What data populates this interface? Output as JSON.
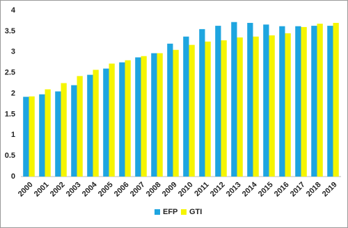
{
  "chart_data": {
    "type": "bar",
    "categories": [
      "2000",
      "2001",
      "2002",
      "2003",
      "2004",
      "2005",
      "2006",
      "2007",
      "2008",
      "2009",
      "2010",
      "2011",
      "2012",
      "2013",
      "2014",
      "2015",
      "2016",
      "2017",
      "2018",
      "2019"
    ],
    "series": [
      {
        "name": "EFP",
        "color": "#1ea5e0",
        "values": [
          1.92,
          1.98,
          2.05,
          2.2,
          2.45,
          2.6,
          2.75,
          2.87,
          2.97,
          3.2,
          3.37,
          3.55,
          3.63,
          3.72,
          3.7,
          3.66,
          3.62,
          3.62,
          3.63,
          3.63
        ]
      },
      {
        "name": "GTI",
        "color": "#f5f500",
        "values": [
          1.93,
          2.1,
          2.25,
          2.42,
          2.57,
          2.72,
          2.8,
          2.9,
          2.97,
          3.05,
          3.17,
          3.25,
          3.28,
          3.35,
          3.37,
          3.4,
          3.45,
          3.6,
          3.68,
          3.7
        ]
      }
    ],
    "ylim": [
      0,
      4
    ],
    "yticks": [
      0,
      0.5,
      1,
      1.5,
      2,
      2.5,
      3,
      3.5,
      4
    ],
    "grid": false,
    "legend": "bottom"
  }
}
